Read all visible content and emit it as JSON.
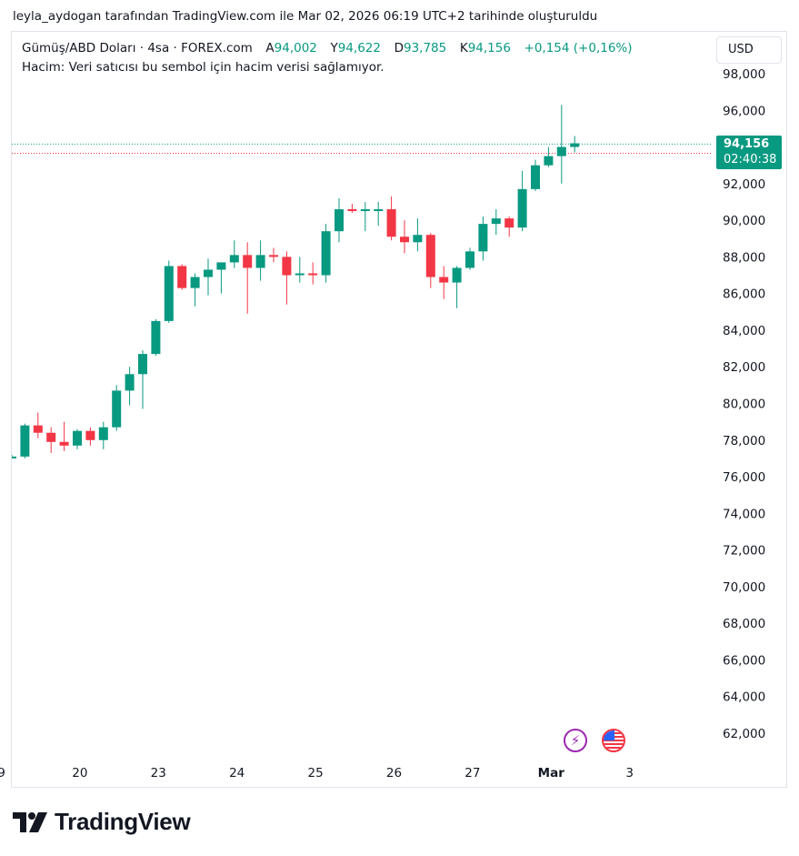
{
  "header": {
    "text": "leyla_aydogan tarafından TradingView.com ile Mar 02, 2026 06:19 UTC+2 tarihinde oluşturuldu"
  },
  "legend": {
    "symbol": "Gümüş/ABD Doları · 4sa · FOREX.com",
    "open_label": "A",
    "open": "94,002",
    "high_label": "Y",
    "high": "94,622",
    "low_label": "D",
    "low": "93,785",
    "close_label": "K",
    "close": "94,156",
    "change": "+0,154 (+0,16%)",
    "volume_note": "Hacim: Veri satıcısı bu sembol için hacim verisi sağlamıyor."
  },
  "currency": "USD",
  "price_badge": {
    "price": "94,156",
    "countdown": "02:40:38"
  },
  "icons": {
    "event": "lightning-icon",
    "country": "us-flag-icon"
  },
  "brand": {
    "name": "TradingView"
  },
  "colors": {
    "up": "#089981",
    "down": "#f23645",
    "text": "#131722",
    "grid": "#e0e3eb",
    "event": "#9c27b0"
  },
  "chart_data": {
    "type": "candlestick",
    "ylim": [
      61000,
      99000
    ],
    "y_ticks": [
      "98,000",
      "96,000",
      "94,000",
      "92,000",
      "90,000",
      "88,000",
      "86,000",
      "84,000",
      "82,000",
      "80,000",
      "78,000",
      "76,000",
      "74,000",
      "72,000",
      "70,000",
      "68,000",
      "66,000",
      "64,000",
      "62,000"
    ],
    "y_tick_values": [
      98000,
      96000,
      94000,
      92000,
      90000,
      88000,
      86000,
      84000,
      82000,
      80000,
      78000,
      76000,
      74000,
      72000,
      70000,
      68000,
      66000,
      64000,
      62000
    ],
    "x_ticks": [
      {
        "label": "9",
        "index": -0.8
      },
      {
        "label": "20",
        "index": 5.2
      },
      {
        "label": "23",
        "index": 11.2
      },
      {
        "label": "24",
        "index": 17.2
      },
      {
        "label": "25",
        "index": 23.2
      },
      {
        "label": "26",
        "index": 29.2
      },
      {
        "label": "27",
        "index": 35.2
      },
      {
        "label": "Mar",
        "index": 41.2
      },
      {
        "label": "3",
        "index": 47.2
      }
    ],
    "last_price": 94156,
    "prev_close": 94002,
    "candles": [
      {
        "o": 77100,
        "h": 77200,
        "l": 77000,
        "c": 77100
      },
      {
        "o": 77100,
        "h": 78900,
        "l": 77000,
        "c": 78800
      },
      {
        "o": 78800,
        "h": 79500,
        "l": 78100,
        "c": 78400
      },
      {
        "o": 78400,
        "h": 78700,
        "l": 77300,
        "c": 77900
      },
      {
        "o": 77900,
        "h": 79000,
        "l": 77400,
        "c": 77700
      },
      {
        "o": 77700,
        "h": 78600,
        "l": 77500,
        "c": 78500
      },
      {
        "o": 78500,
        "h": 78700,
        "l": 77700,
        "c": 78000
      },
      {
        "o": 78000,
        "h": 79000,
        "l": 77500,
        "c": 78700
      },
      {
        "o": 78700,
        "h": 81000,
        "l": 78500,
        "c": 80700
      },
      {
        "o": 80700,
        "h": 82000,
        "l": 79900,
        "c": 81600
      },
      {
        "o": 81600,
        "h": 82900,
        "l": 79700,
        "c": 82700
      },
      {
        "o": 82700,
        "h": 84600,
        "l": 82600,
        "c": 84500
      },
      {
        "o": 84500,
        "h": 87800,
        "l": 84400,
        "c": 87500
      },
      {
        "o": 87500,
        "h": 87600,
        "l": 86200,
        "c": 86300
      },
      {
        "o": 86300,
        "h": 87100,
        "l": 85300,
        "c": 86900
      },
      {
        "o": 86900,
        "h": 87900,
        "l": 85900,
        "c": 87300
      },
      {
        "o": 87300,
        "h": 87700,
        "l": 86000,
        "c": 87700
      },
      {
        "o": 87700,
        "h": 88900,
        "l": 87400,
        "c": 88100
      },
      {
        "o": 88100,
        "h": 88800,
        "l": 84900,
        "c": 87400
      },
      {
        "o": 87400,
        "h": 88900,
        "l": 86700,
        "c": 88100
      },
      {
        "o": 88100,
        "h": 88500,
        "l": 87700,
        "c": 88000
      },
      {
        "o": 88000,
        "h": 88300,
        "l": 85400,
        "c": 87000
      },
      {
        "o": 87000,
        "h": 88000,
        "l": 86600,
        "c": 87100
      },
      {
        "o": 87100,
        "h": 87700,
        "l": 86500,
        "c": 87000
      },
      {
        "o": 87000,
        "h": 89800,
        "l": 86600,
        "c": 89400
      },
      {
        "o": 89400,
        "h": 91200,
        "l": 88800,
        "c": 90600
      },
      {
        "o": 90600,
        "h": 90900,
        "l": 90400,
        "c": 90500
      },
      {
        "o": 90500,
        "h": 91000,
        "l": 89400,
        "c": 90600
      },
      {
        "o": 90600,
        "h": 91000,
        "l": 89700,
        "c": 90600
      },
      {
        "o": 90600,
        "h": 91300,
        "l": 88900,
        "c": 89100
      },
      {
        "o": 89100,
        "h": 90000,
        "l": 88200,
        "c": 88800
      },
      {
        "o": 88800,
        "h": 90100,
        "l": 88300,
        "c": 89200
      },
      {
        "o": 89200,
        "h": 89300,
        "l": 86300,
        "c": 86900
      },
      {
        "o": 86900,
        "h": 87500,
        "l": 85700,
        "c": 86600
      },
      {
        "o": 86600,
        "h": 87500,
        "l": 85200,
        "c": 87400
      },
      {
        "o": 87400,
        "h": 88500,
        "l": 87300,
        "c": 88300
      },
      {
        "o": 88300,
        "h": 90200,
        "l": 87800,
        "c": 89800
      },
      {
        "o": 89800,
        "h": 90600,
        "l": 89200,
        "c": 90100
      },
      {
        "o": 90100,
        "h": 90200,
        "l": 89100,
        "c": 89600
      },
      {
        "o": 89600,
        "h": 92700,
        "l": 89400,
        "c": 91700
      },
      {
        "o": 91700,
        "h": 93300,
        "l": 91600,
        "c": 93000
      },
      {
        "o": 93000,
        "h": 94000,
        "l": 92900,
        "c": 93500
      },
      {
        "o": 93500,
        "h": 96300,
        "l": 92000,
        "c": 94000
      },
      {
        "o": 94000,
        "h": 94600,
        "l": 93700,
        "c": 94200
      }
    ]
  }
}
